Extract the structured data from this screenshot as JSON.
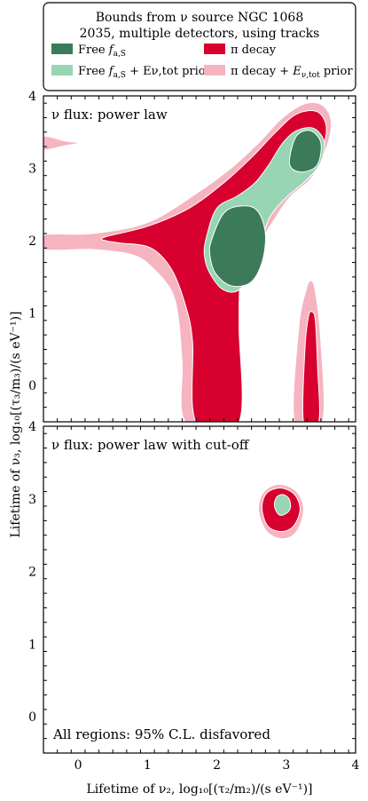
{
  "chart_data": {
    "type": "contour",
    "title": "Bounds from ν source NGC 1068",
    "subtitle": "2035, multiple detectors, using tracks",
    "xlabel": "Lifetime of ν₂, log₁₀[(τ₂/m₂)/(s eV⁻¹)]",
    "ylabel": "Lifetime of ν₃, log₁₀[(τ₃/m₃)/(s eV⁻¹)]",
    "xlim": [
      -0.5,
      4
    ],
    "ylim": [
      -0.5,
      4
    ],
    "x_ticks": [
      "0",
      "1",
      "2",
      "3",
      "4"
    ],
    "y_ticks": [
      "0",
      "1",
      "2",
      "3",
      "4"
    ],
    "legend": [
      {
        "name": "Free f_{a,S}",
        "label_main": "Free ",
        "label_sub_base": "f",
        "label_sub": "a,S",
        "label_tail": "",
        "color": "#3b7a5a"
      },
      {
        "name": "π decay",
        "label_main": "π decay",
        "label_sub_base": "",
        "label_sub": "",
        "label_tail": "",
        "color": "#d7002e"
      },
      {
        "name": "Free f_{a,S} + E_{ν,tot} prior",
        "label_main": "Free ",
        "label_sub_base": "f",
        "label_sub": "a,S",
        "label_tail": " + Eν,tot prior",
        "color": "#97d5b4"
      },
      {
        "name": "π decay + E_{ν,tot} prior",
        "label_main": "π decay + ",
        "label_sub_base": "E",
        "label_sub": "ν,tot",
        "label_tail": " prior",
        "color": "#f6b4c0"
      }
    ],
    "legend_placement": "top",
    "panels": [
      {
        "label": "ν flux: power law",
        "regions_95CL": [
          {
            "series": "π decay + E_{ν,tot} prior",
            "points": [
              [
                -0.5,
                2.08
              ],
              [
                0.2,
                2.1
              ],
              [
                1.0,
                2.25
              ],
              [
                1.7,
                2.65
              ],
              [
                2.2,
                3.0
              ],
              [
                2.6,
                3.35
              ],
              [
                2.95,
                3.7
              ],
              [
                3.3,
                3.9
              ],
              [
                3.55,
                3.85
              ],
              [
                3.65,
                3.6
              ],
              [
                3.55,
                3.2
              ],
              [
                3.35,
                2.85
              ],
              [
                3.05,
                2.6
              ],
              [
                2.8,
                2.25
              ],
              [
                2.6,
                1.95
              ],
              [
                2.35,
                1.6
              ],
              [
                2.2,
                1.2
              ],
              [
                2.2,
                0.6
              ],
              [
                2.25,
                -0.5
              ],
              [
                1.55,
                -0.5
              ],
              [
                1.5,
                0.3
              ],
              [
                1.45,
                0.9
              ],
              [
                1.35,
                1.3
              ],
              [
                1.1,
                1.6
              ],
              [
                0.8,
                1.8
              ],
              [
                0.2,
                1.88
              ],
              [
                -0.5,
                1.88
              ]
            ]
          },
          {
            "series": "π decay + E_{ν,tot} prior",
            "points": [
              [
                -0.5,
                3.44
              ],
              [
                -0.2,
                3.38
              ],
              [
                0.0,
                3.35
              ],
              [
                -0.2,
                3.31
              ],
              [
                -0.5,
                3.26
              ]
            ]
          },
          {
            "series": "π decay + E_{ν,tot} prior",
            "points": [
              [
                3.12,
                -0.5
              ],
              [
                3.18,
                0.8
              ],
              [
                3.28,
                1.3
              ],
              [
                3.35,
                1.45
              ],
              [
                3.42,
                1.3
              ],
              [
                3.5,
                0.6
              ],
              [
                3.52,
                -0.5
              ]
            ]
          },
          {
            "series": "π decay",
            "points": [
              [
                0.38,
                2.05
              ],
              [
                1.0,
                2.2
              ],
              [
                1.6,
                2.45
              ],
              [
                2.1,
                2.8
              ],
              [
                2.5,
                3.15
              ],
              [
                2.85,
                3.5
              ],
              [
                3.15,
                3.75
              ],
              [
                3.45,
                3.78
              ],
              [
                3.58,
                3.55
              ],
              [
                3.48,
                3.2
              ],
              [
                3.2,
                2.9
              ],
              [
                2.9,
                2.6
              ],
              [
                2.6,
                2.2
              ],
              [
                2.4,
                1.9
              ],
              [
                2.33,
                1.4
              ],
              [
                2.32,
                0.8
              ],
              [
                2.32,
                -0.5
              ],
              [
                1.7,
                -0.5
              ],
              [
                1.65,
                0.6
              ],
              [
                1.55,
                1.1
              ],
              [
                1.35,
                1.6
              ],
              [
                1.05,
                1.9
              ],
              [
                0.6,
                1.97
              ],
              [
                0.4,
                2.0
              ]
            ]
          },
          {
            "series": "π decay",
            "points": [
              [
                3.25,
                -0.5
              ],
              [
                3.27,
                0.5
              ],
              [
                3.32,
                0.95
              ],
              [
                3.37,
                1.02
              ],
              [
                3.42,
                0.9
              ],
              [
                3.45,
                0.3
              ],
              [
                3.47,
                -0.5
              ]
            ]
          },
          {
            "series": "Free f_{a,S} + E_{ν,tot} prior",
            "points": [
              [
                1.85,
                2.05
              ],
              [
                2.0,
                2.45
              ],
              [
                2.3,
                2.62
              ],
              [
                2.55,
                2.8
              ],
              [
                2.75,
                3.05
              ],
              [
                2.95,
                3.35
              ],
              [
                3.15,
                3.52
              ],
              [
                3.4,
                3.55
              ],
              [
                3.55,
                3.35
              ],
              [
                3.48,
                3.05
              ],
              [
                3.25,
                2.8
              ],
              [
                3.0,
                2.6
              ],
              [
                2.75,
                2.3
              ],
              [
                2.6,
                1.85
              ],
              [
                2.35,
                1.35
              ],
              [
                2.1,
                1.32
              ],
              [
                1.9,
                1.55
              ],
              [
                1.82,
                1.8
              ]
            ]
          },
          {
            "series": "Free f_{a,S}",
            "points": [
              [
                1.92,
                2.0
              ],
              [
                2.1,
                2.38
              ],
              [
                2.35,
                2.48
              ],
              [
                2.58,
                2.42
              ],
              [
                2.7,
                2.1
              ],
              [
                2.65,
                1.7
              ],
              [
                2.48,
                1.42
              ],
              [
                2.2,
                1.38
              ],
              [
                1.98,
                1.55
              ],
              [
                1.9,
                1.8
              ]
            ]
          },
          {
            "series": "Free f_{a,S}",
            "points": [
              [
                3.05,
                3.15
              ],
              [
                3.15,
                3.45
              ],
              [
                3.35,
                3.52
              ],
              [
                3.5,
                3.35
              ],
              [
                3.45,
                3.05
              ],
              [
                3.25,
                2.95
              ],
              [
                3.08,
                3.0
              ]
            ]
          }
        ]
      },
      {
        "label": "ν flux: power law with cut-off",
        "regions_95CL": [
          {
            "series": "π decay + E_{ν,tot} prior",
            "points": [
              [
                2.6,
                2.85
              ],
              [
                2.68,
                3.1
              ],
              [
                2.9,
                3.2
              ],
              [
                3.15,
                3.1
              ],
              [
                3.25,
                2.85
              ],
              [
                3.15,
                2.55
              ],
              [
                2.95,
                2.45
              ],
              [
                2.72,
                2.55
              ]
            ]
          },
          {
            "series": "π decay",
            "points": [
              [
                2.65,
                2.88
              ],
              [
                2.72,
                3.08
              ],
              [
                2.92,
                3.15
              ],
              [
                3.12,
                3.06
              ],
              [
                3.2,
                2.85
              ],
              [
                3.1,
                2.62
              ],
              [
                2.92,
                2.55
              ],
              [
                2.73,
                2.63
              ]
            ]
          },
          {
            "series": "Free f_{a,S} + E_{ν,tot} prior",
            "points": [
              [
                2.83,
                2.9
              ],
              [
                2.86,
                3.02
              ],
              [
                2.95,
                3.06
              ],
              [
                3.04,
                3.0
              ],
              [
                3.06,
                2.88
              ],
              [
                3.0,
                2.8
              ],
              [
                2.9,
                2.78
              ]
            ]
          }
        ]
      }
    ],
    "note": "All regions: 95% C.L. disfavored"
  }
}
